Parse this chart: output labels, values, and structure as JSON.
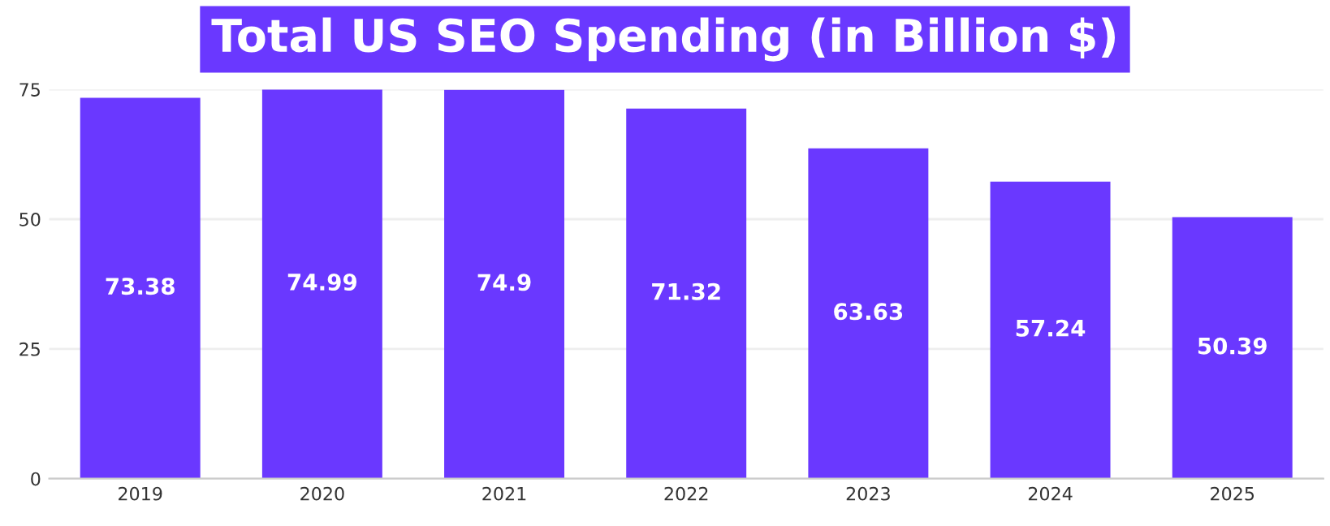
{
  "chart_data": {
    "type": "bar",
    "title": "Total US SEO Spending (in Billion $)",
    "categories": [
      "2019",
      "2020",
      "2021",
      "2022",
      "2023",
      "2024",
      "2025"
    ],
    "values": [
      73.38,
      74.99,
      74.9,
      71.32,
      63.63,
      57.24,
      50.39
    ],
    "color": "#6a38ff",
    "ylim": [
      0,
      75
    ],
    "yticks": [
      0,
      25,
      50,
      75
    ],
    "grid": "y",
    "data_labels": true
  }
}
